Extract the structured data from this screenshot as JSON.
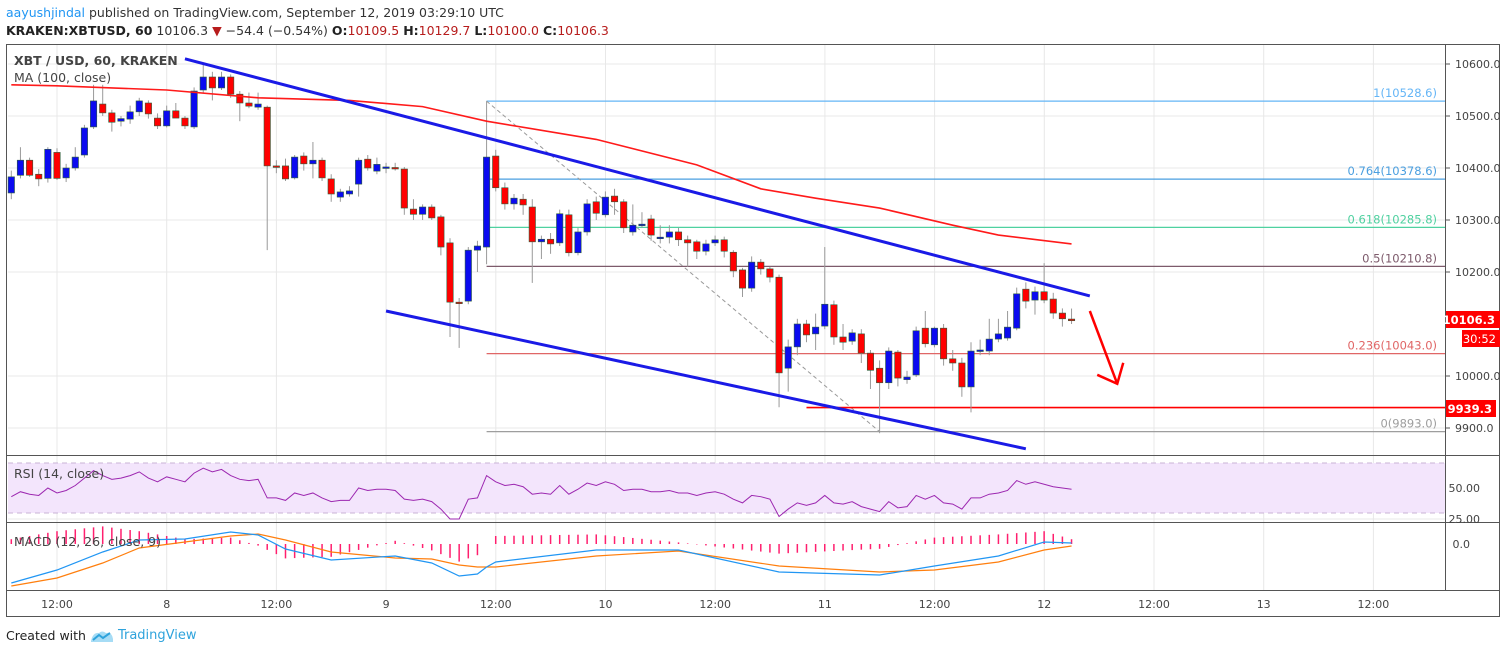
{
  "header": {
    "author": "aayushjindal",
    "published_text": "published on TradingView.com, September 12, 2019 03:29:10 UTC",
    "symbol": "KRAKEN:XBTUSD, 60",
    "last": "10106.3",
    "change_icon": "triangle-down-icon",
    "change": "−54.4 (−0.54%)",
    "o_label": "O:",
    "o": "10109.5",
    "h_label": "H:",
    "h": "10129.7",
    "l_label": "L:",
    "l": "10100.0",
    "c_label": "C:",
    "c": "10106.3"
  },
  "legend": {
    "title": "XBT / USD, 60, KRAKEN",
    "ma": "MA (100, close)",
    "rsi": "RSI (14, close)",
    "macd": "MACD (12, 26, close, 9)"
  },
  "price_axis": [
    "10600.0",
    "10500.0",
    "10400.0",
    "10300.0",
    "10200.0",
    "10000.0",
    "9900.0"
  ],
  "price_badges": {
    "last": "10106.3",
    "countdown": "30:52",
    "support": "9939.3"
  },
  "rsi_axis": [
    "50.00",
    "25.00"
  ],
  "macd_axis": [
    "0.0"
  ],
  "time_axis": [
    "12:00",
    "8",
    "12:00",
    "9",
    "12:00",
    "10",
    "12:00",
    "11",
    "12:00",
    "12",
    "12:00",
    "13",
    "12:00"
  ],
  "fib_levels": [
    {
      "label": "1(10528.6)",
      "value": 10528.6,
      "color": "#64b5f6"
    },
    {
      "label": "0.764(10378.6)",
      "value": 10378.6,
      "color": "#4a9fe0"
    },
    {
      "label": "0.618(10285.8)",
      "value": 10285.8,
      "color": "#4fd1a0"
    },
    {
      "label": "0.5(10210.8)",
      "value": 10210.8,
      "color": "#7d5a6b"
    },
    {
      "label": "0.236(10043.0)",
      "value": 10043.0,
      "color": "#e06666"
    },
    {
      "label": "0(9893.0)",
      "value": 9893.0,
      "color": "#9e9e9e"
    }
  ],
  "colors": {
    "up": "#0a0af0",
    "down": "#ff0000",
    "ma": "#ff1a1a",
    "trendline": "#1a1ae6",
    "rsi": "#9c27b0",
    "macd": "#2196f3",
    "signal": "#ff7f0e",
    "histogram": "#ff1f6e",
    "badge": "#ff0000"
  },
  "footer": {
    "created_with": "Created with",
    "brand": "TradingView"
  },
  "chart_data": {
    "type": "candlestick",
    "interval_minutes": 60,
    "start": "2019-09-07 07:00",
    "candles_ohlc": [
      [
        10352,
        10395,
        10340,
        10383
      ],
      [
        10386,
        10440,
        10380,
        10415
      ],
      [
        10415,
        10420,
        10383,
        10386
      ],
      [
        10388,
        10398,
        10365,
        10379
      ],
      [
        10380,
        10440,
        10372,
        10436
      ],
      [
        10430,
        10438,
        10377,
        10380
      ],
      [
        10381,
        10408,
        10373,
        10400
      ],
      [
        10400,
        10440,
        10395,
        10421
      ],
      [
        10425,
        10483,
        10420,
        10477
      ],
      [
        10479,
        10560,
        10475,
        10529
      ],
      [
        10523,
        10560,
        10500,
        10506
      ],
      [
        10506,
        10512,
        10470,
        10488
      ],
      [
        10490,
        10500,
        10480,
        10495
      ],
      [
        10494,
        10520,
        10485,
        10508
      ],
      [
        10508,
        10535,
        10500,
        10529
      ],
      [
        10525,
        10530,
        10495,
        10504
      ],
      [
        10496,
        10505,
        10475,
        10481
      ],
      [
        10481,
        10520,
        10478,
        10510
      ],
      [
        10510,
        10525,
        10500,
        10496
      ],
      [
        10496,
        10500,
        10475,
        10481
      ],
      [
        10479,
        10555,
        10475,
        10548
      ],
      [
        10550,
        10600,
        10545,
        10575
      ],
      [
        10575,
        10585,
        10530,
        10554
      ],
      [
        10554,
        10585,
        10550,
        10575
      ],
      [
        10575,
        10580,
        10535,
        10542
      ],
      [
        10542,
        10548,
        10490,
        10525
      ],
      [
        10525,
        10545,
        10515,
        10519
      ],
      [
        10517,
        10545,
        10512,
        10523
      ],
      [
        10517,
        10520,
        10242,
        10404
      ],
      [
        10404,
        10415,
        10390,
        10402
      ],
      [
        10404,
        10418,
        10375,
        10379
      ],
      [
        10381,
        10425,
        10378,
        10421
      ],
      [
        10423,
        10430,
        10395,
        10408
      ],
      [
        10408,
        10450,
        10380,
        10415
      ],
      [
        10415,
        10420,
        10375,
        10381
      ],
      [
        10379,
        10388,
        10335,
        10350
      ],
      [
        10344,
        10360,
        10335,
        10354
      ],
      [
        10350,
        10365,
        10345,
        10356
      ],
      [
        10369,
        10420,
        10345,
        10415
      ],
      [
        10417,
        10425,
        10395,
        10400
      ],
      [
        10394,
        10420,
        10388,
        10407
      ],
      [
        10402,
        10410,
        10390,
        10402
      ],
      [
        10401,
        10410,
        10395,
        10400
      ],
      [
        10398,
        10402,
        10310,
        10323
      ],
      [
        10321,
        10340,
        10300,
        10311
      ],
      [
        10311,
        10330,
        10300,
        10325
      ],
      [
        10325,
        10330,
        10300,
        10304
      ],
      [
        10306,
        10310,
        10232,
        10248
      ],
      [
        10256,
        10265,
        10075,
        10142
      ],
      [
        10142,
        10150,
        10054,
        10140
      ],
      [
        10144,
        10248,
        10138,
        10242
      ],
      [
        10242,
        10260,
        10200,
        10250
      ],
      [
        10248,
        10528.6,
        10215,
        10421
      ],
      [
        10423,
        10435,
        10355,
        10362
      ],
      [
        10362,
        10372,
        10320,
        10331
      ],
      [
        10331,
        10350,
        10320,
        10342
      ],
      [
        10340,
        10350,
        10310,
        10329
      ],
      [
        10325,
        10340,
        10179,
        10258
      ],
      [
        10258,
        10270,
        10225,
        10263
      ],
      [
        10263,
        10275,
        10235,
        10254
      ],
      [
        10256,
        10320,
        10250,
        10312
      ],
      [
        10310,
        10320,
        10230,
        10237
      ],
      [
        10237,
        10285,
        10232,
        10277
      ],
      [
        10277,
        10340,
        10270,
        10331
      ],
      [
        10335,
        10345,
        10300,
        10313
      ],
      [
        10310,
        10355,
        10305,
        10344
      ],
      [
        10346,
        10360,
        10310,
        10335
      ],
      [
        10335,
        10340,
        10275,
        10285
      ],
      [
        10277,
        10330,
        10270,
        10290
      ],
      [
        10292,
        10315,
        10285,
        10292
      ],
      [
        10302,
        10310,
        10260,
        10271
      ],
      [
        10267,
        10290,
        10255,
        10267
      ],
      [
        10267,
        10290,
        10255,
        10277
      ],
      [
        10277,
        10285,
        10250,
        10262
      ],
      [
        10262,
        10270,
        10210,
        10256
      ],
      [
        10258,
        10262,
        10225,
        10240
      ],
      [
        10240,
        10262,
        10232,
        10254
      ],
      [
        10256,
        10270,
        10250,
        10262
      ],
      [
        10262,
        10268,
        10228,
        10240
      ],
      [
        10238,
        10242,
        10190,
        10202
      ],
      [
        10204,
        10208,
        10152,
        10169
      ],
      [
        10169,
        10230,
        10162,
        10219
      ],
      [
        10219,
        10225,
        10195,
        10206
      ],
      [
        10206,
        10210,
        10180,
        10190
      ],
      [
        10190,
        10195,
        9940,
        10006
      ],
      [
        10015,
        10070,
        9970,
        10056
      ],
      [
        10056,
        10110,
        10040,
        10100
      ],
      [
        10100,
        10108,
        10065,
        10079
      ],
      [
        10081,
        10120,
        10050,
        10094
      ],
      [
        10096,
        10248,
        10090,
        10138
      ],
      [
        10137,
        10145,
        10060,
        10075
      ],
      [
        10075,
        10100,
        10050,
        10065
      ],
      [
        10067,
        10090,
        10060,
        10083
      ],
      [
        10081,
        10090,
        10025,
        10044
      ],
      [
        10044,
        10050,
        9975,
        10011
      ],
      [
        10015,
        10030,
        9890,
        9987
      ],
      [
        9987,
        10055,
        9975,
        10048
      ],
      [
        10046,
        10050,
        9980,
        9996
      ],
      [
        9993,
        10010,
        9985,
        9998
      ],
      [
        10002,
        10095,
        9998,
        10087
      ],
      [
        10092,
        10125,
        10055,
        10062
      ],
      [
        10060,
        10095,
        10055,
        10092
      ],
      [
        10092,
        10100,
        10020,
        10033
      ],
      [
        10033,
        10050,
        10010,
        10025
      ],
      [
        10025,
        10035,
        9960,
        9979
      ],
      [
        9979,
        10065,
        9930,
        10048
      ],
      [
        10050,
        10070,
        10040,
        10050
      ],
      [
        10048,
        10110,
        10040,
        10071
      ],
      [
        10071,
        10110,
        10065,
        10081
      ],
      [
        10073,
        10125,
        10068,
        10094
      ],
      [
        10092,
        10170,
        10088,
        10158
      ],
      [
        10167,
        10180,
        10130,
        10144
      ],
      [
        10146,
        10172,
        10118,
        10162
      ],
      [
        10162,
        10217,
        10140,
        10146
      ],
      [
        10148,
        10160,
        10110,
        10121
      ],
      [
        10121,
        10130,
        10095,
        10110
      ],
      [
        10109.5,
        10129.7,
        10100.0,
        10106.3
      ]
    ],
    "ma100": [
      [
        "2019-09-07 07:00",
        10560
      ],
      [
        "2019-09-07 12:00",
        10558
      ],
      [
        "2019-09-08 00:00",
        10550
      ],
      [
        "2019-09-08 10:00",
        10535
      ],
      [
        "2019-09-08 20:00",
        10530
      ],
      [
        "2019-09-09 04:00",
        10518
      ],
      [
        "2019-09-09 11:00",
        10490
      ],
      [
        "2019-09-09 23:00",
        10455
      ],
      [
        "2019-09-10 10:00",
        10406
      ],
      [
        "2019-09-10 17:00",
        10360
      ],
      [
        "2019-09-10 23:00",
        10342
      ],
      [
        "2019-09-11 06:00",
        10323
      ],
      [
        "2019-09-11 14:00",
        10290
      ],
      [
        "2019-09-11 19:00",
        10271
      ],
      [
        "2019-09-12 03:00",
        10254
      ]
    ],
    "trendlines": [
      {
        "from": [
          "2019-09-08 02:00",
          10610
        ],
        "to": [
          "2019-09-12 05:00",
          10154
        ]
      },
      {
        "from": [
          "2019-09-09 00:00",
          10125
        ],
        "to": [
          "2019-09-11 22:00",
          9860
        ]
      }
    ],
    "fib_anchor": {
      "from": [
        "2019-09-09 11:00",
        10528.6
      ],
      "to": [
        "2019-09-11 06:00",
        9893.0
      ]
    },
    "support_line": {
      "from": "2019-09-10 22:00",
      "value": 9939.3
    },
    "arrow": {
      "from": [
        "2019-09-12 05:00",
        10125
      ],
      "to": [
        "2019-09-12 08:00",
        9985
      ]
    },
    "ylim": [
      9850,
      10640
    ],
    "rsi_bands": [
      70,
      30
    ],
    "rsi": [
      43,
      47,
      45,
      44,
      50,
      46,
      48,
      52,
      58,
      64,
      60,
      57,
      58,
      60,
      63,
      58,
      55,
      59,
      57,
      55,
      62,
      66,
      63,
      65,
      60,
      57,
      56,
      57,
      42,
      42,
      40,
      46,
      44,
      46,
      42,
      39,
      40,
      40,
      50,
      48,
      49,
      49,
      48,
      41,
      40,
      41,
      39,
      33,
      25,
      25,
      41,
      42,
      60,
      55,
      52,
      53,
      51,
      45,
      46,
      45,
      52,
      45,
      49,
      54,
      52,
      55,
      53,
      48,
      49,
      49,
      47,
      47,
      48,
      46,
      46,
      44,
      46,
      47,
      45,
      41,
      38,
      44,
      43,
      41,
      27,
      33,
      38,
      36,
      38,
      44,
      38,
      37,
      39,
      35,
      33,
      31,
      39,
      34,
      35,
      44,
      41,
      44,
      38,
      37,
      33,
      42,
      42,
      45,
      46,
      48,
      56,
      53,
      55,
      53,
      51,
      50,
      49
    ],
    "macd": [
      [
        "2019-09-07 07:00",
        -39,
        -42
      ],
      [
        "2019-09-07 12:00",
        -26,
        -34
      ],
      [
        "2019-09-07 17:00",
        -8,
        -19
      ],
      [
        "2019-09-07 21:00",
        4,
        -4
      ],
      [
        "2019-09-08 02:00",
        5,
        2
      ],
      [
        "2019-09-08 07:00",
        12,
        8
      ],
      [
        "2019-09-08 10:00",
        9,
        10
      ],
      [
        "2019-09-08 13:00",
        -5,
        4
      ],
      [
        "2019-09-08 18:00",
        -16,
        -8
      ],
      [
        "2019-09-09 01:00",
        -12,
        -14
      ],
      [
        "2019-09-09 05:00",
        -19,
        -15
      ],
      [
        "2019-09-09 08:00",
        -32,
        -21
      ],
      [
        "2019-09-09 10:00",
        -30,
        -23
      ],
      [
        "2019-09-09 11:00",
        -23,
        -23
      ],
      [
        "2019-09-09 12:00",
        -18,
        -23
      ],
      [
        "2019-09-09 23:00",
        -6,
        -12
      ],
      [
        "2019-09-10 08:00",
        -6,
        -7
      ],
      [
        "2019-09-10 19:00",
        -28,
        -22
      ],
      [
        "2019-09-11 06:00",
        -31,
        -28
      ],
      [
        "2019-09-11 12:00",
        -22,
        -26
      ],
      [
        "2019-09-11 19:00",
        -12,
        -18
      ],
      [
        "2019-09-12 00:00",
        2,
        -6
      ],
      [
        "2019-09-12 03:00",
        1,
        -2
      ]
    ]
  }
}
